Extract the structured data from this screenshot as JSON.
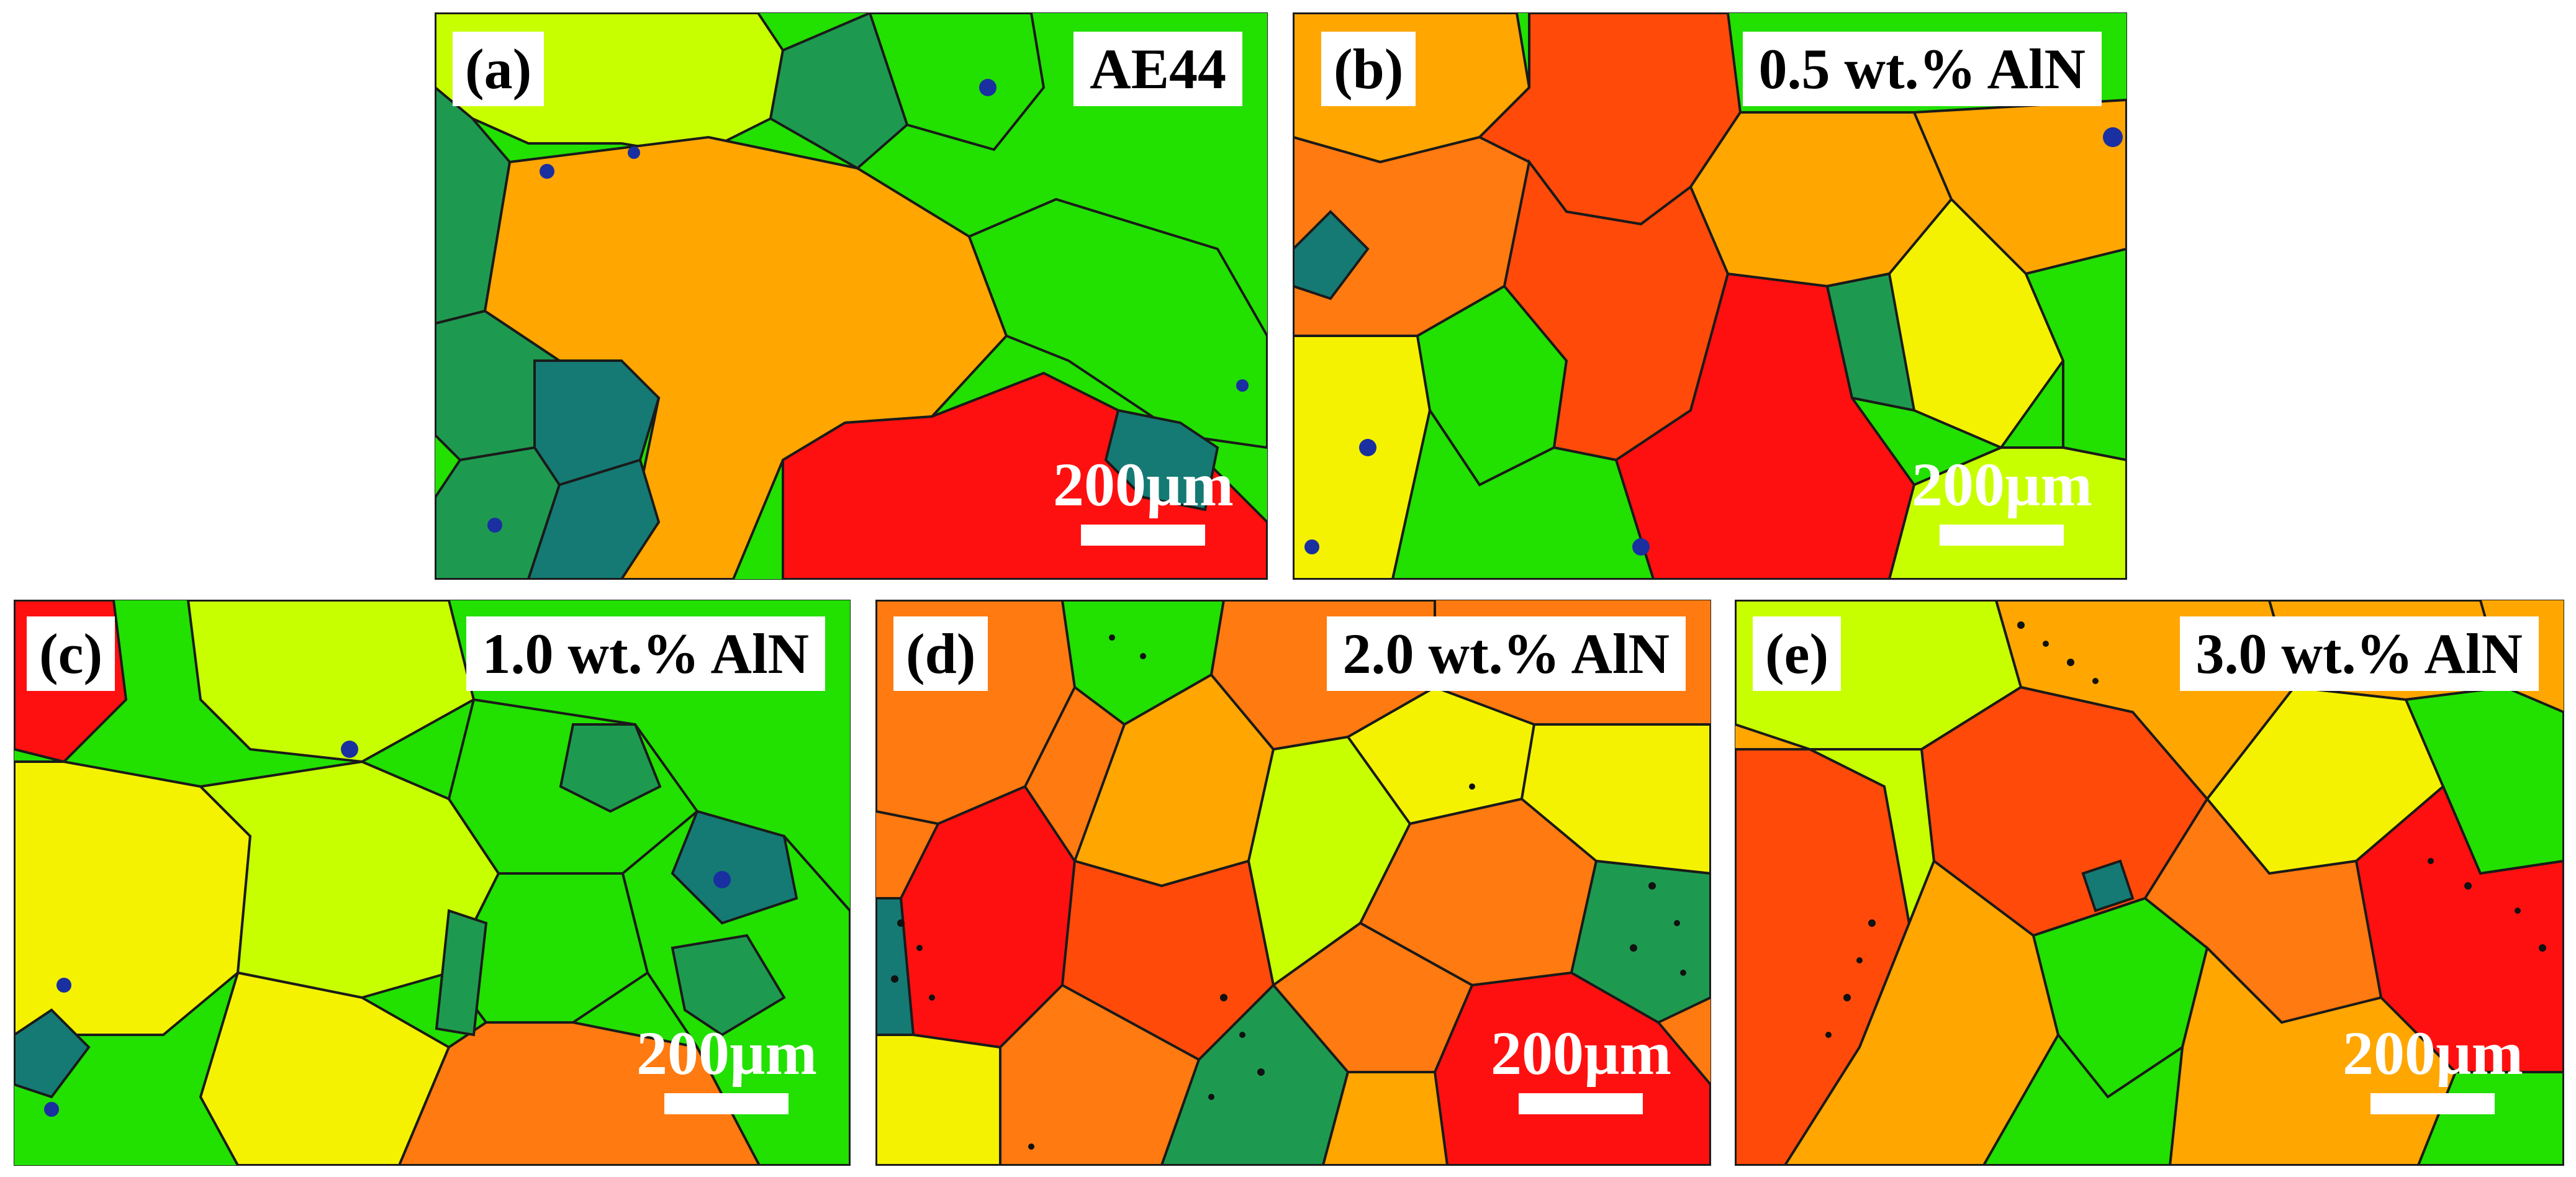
{
  "panels": [
    {
      "id": "a",
      "letter": "(a)",
      "title": "AE44",
      "scale_label": "200µm"
    },
    {
      "id": "b",
      "letter": "(b)",
      "title": "0.5 wt.% AlN",
      "scale_label": "200µm"
    },
    {
      "id": "c",
      "letter": "(c)",
      "title": "1.0 wt.% AlN",
      "scale_label": "200µm"
    },
    {
      "id": "d",
      "letter": "(d)",
      "title": "2.0 wt.% AlN",
      "scale_label": "200µm"
    },
    {
      "id": "e",
      "letter": "(e)",
      "title": "3.0 wt.% AlN",
      "scale_label": "200µm"
    }
  ],
  "colors": {
    "green": "#22e000",
    "dark_green": "#1e9a50",
    "teal": "#157a74",
    "yellow_green": "#c8ff00",
    "yellow": "#f4f200",
    "orange_yellow": "#ffa600",
    "orange": "#ff7a10",
    "red_orange": "#ff4a0a",
    "red": "#ff1010",
    "blue": "#1a2fa0",
    "boundary": "#1a1a1a",
    "scale_bar": "#ffffff"
  }
}
